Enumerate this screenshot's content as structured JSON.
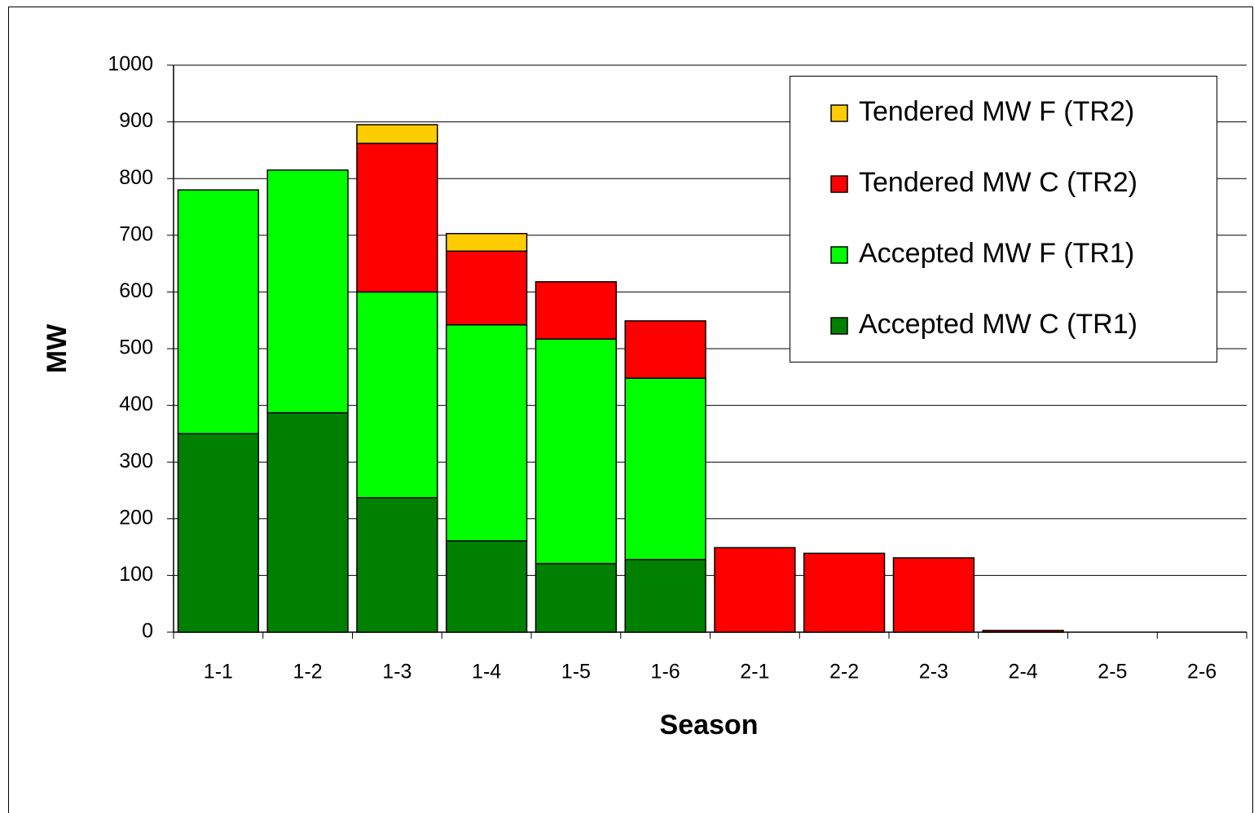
{
  "chart_data": {
    "type": "stacked_bar",
    "x_label": "Season",
    "y_label": "MW",
    "categories": [
      "1-1",
      "1-2",
      "1-3",
      "1-4",
      "1-5",
      "1-6",
      "2-1",
      "2-2",
      "2-3",
      "2-4",
      "2-5",
      "2-6"
    ],
    "series": [
      {
        "name": "Accepted MW C (TR1)",
        "color": "#008000",
        "values": [
          350,
          387,
          237,
          161,
          121,
          128,
          0,
          0,
          0,
          0,
          0,
          0
        ]
      },
      {
        "name": "Accepted MW F (TR1)",
        "color": "#00ff00",
        "values": [
          430,
          428,
          363,
          381,
          396,
          320,
          0,
          0,
          0,
          0,
          0,
          0
        ]
      },
      {
        "name": "Tendered MW C (TR2)",
        "color": "#ff0000",
        "values": [
          0,
          0,
          262,
          130,
          101,
          101,
          149,
          139,
          131,
          3,
          0,
          0
        ]
      },
      {
        "name": "Tendered MW F (TR2)",
        "color": "#ffcc00",
        "values": [
          0,
          0,
          33,
          31,
          0,
          0,
          0,
          0,
          0,
          0,
          0,
          0
        ]
      }
    ],
    "ylim": [
      0,
      1000
    ],
    "yticks": [
      0,
      100,
      200,
      300,
      400,
      500,
      600,
      700,
      800,
      900,
      1000
    ],
    "grid": true,
    "legend": "top-right"
  }
}
